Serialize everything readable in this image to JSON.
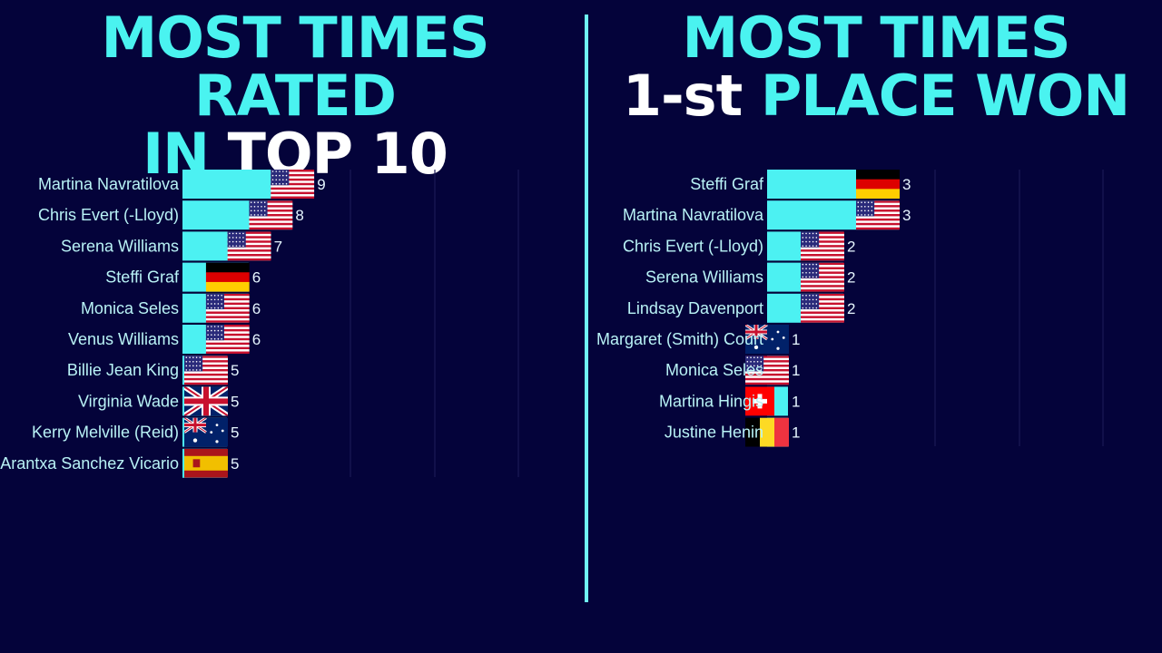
{
  "colors": {
    "background": "#04033a",
    "bar": "#4cf1f2",
    "title": "#4af3f0",
    "label": "#b9f3f6",
    "value": "#e6f6ff",
    "grid": "#1a1a55",
    "divider": "#6ff5f2"
  },
  "left_title": {
    "line1": "MOST TIMES RATED",
    "line2a": "IN ",
    "line2b": "TOP 10"
  },
  "right_title": {
    "line1": "MOST TIMES",
    "line2a": "1-st ",
    "line2b": "PLACE WON"
  },
  "chart_data": [
    {
      "type": "bar",
      "orientation": "horizontal",
      "title": "MOST TIMES RATED IN TOP 10",
      "grid": true,
      "categories": [
        "Martina Navratilova",
        "Chris Evert (-Lloyd)",
        "Serena Williams",
        "Steffi Graf",
        "Monica Seles",
        "Venus Williams",
        "Billie Jean King",
        "Virginia Wade",
        "Kerry Melville (Reid)",
        "Arantxa Sanchez Vicario"
      ],
      "values": [
        9,
        8,
        7,
        6,
        6,
        6,
        5,
        5,
        5,
        5
      ],
      "flags": [
        "us-flag-icon",
        "us-flag-icon",
        "us-flag-icon",
        "de-flag-icon",
        "us-flag-icon",
        "us-flag-icon",
        "us-flag-icon",
        "uk-flag-icon",
        "au-flag-icon",
        "es-flag-icon"
      ]
    },
    {
      "type": "bar",
      "orientation": "horizontal",
      "title": "MOST TIMES 1-st PLACE WON",
      "grid": true,
      "categories": [
        "Steffi Graf",
        "Martina Navratilova",
        "Chris Evert (-Lloyd)",
        "Serena Williams",
        "Lindsay Davenport",
        "Margaret (Smith) Court",
        "Monica Seles",
        "Martina Hingis",
        "Justine Henin"
      ],
      "values": [
        3,
        3,
        2,
        2,
        2,
        1,
        1,
        1,
        1
      ],
      "flags": [
        "de-flag-icon",
        "us-flag-icon",
        "us-flag-icon",
        "us-flag-icon",
        "us-flag-icon",
        "au-flag-icon",
        "us-flag-icon",
        "ch-flag-icon",
        "be-flag-icon"
      ]
    }
  ]
}
